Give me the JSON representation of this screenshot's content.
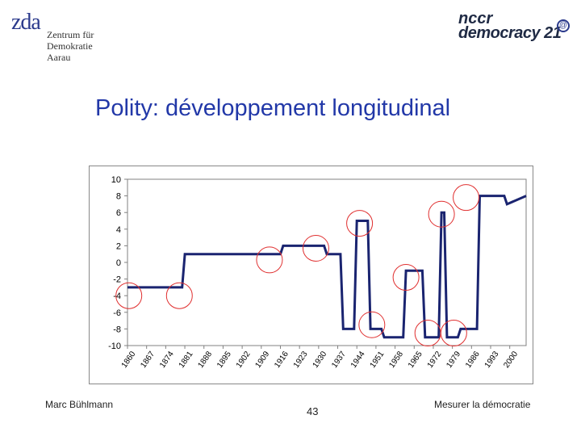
{
  "logos": {
    "left": {
      "mark": "zda",
      "lines": [
        "Zentrum für",
        "Demokratie",
        "Aarau"
      ]
    },
    "right": {
      "line1": "nccr",
      "line2": "democracy 21",
      "badge": "@"
    }
  },
  "slide": {
    "title": "Polity: développement longitudinal",
    "footer_left": "Marc Bühlmann",
    "page_number": "43",
    "footer_right": "Mesurer la démocratie"
  },
  "colors": {
    "title": "#2238a8",
    "line": "#1a2470",
    "circle": "#e03030",
    "plot_bg": "#ffffff"
  },
  "chart_data": {
    "type": "line",
    "title": "",
    "xlabel": "",
    "ylabel": "",
    "xlim": [
      1860,
      2006
    ],
    "ylim": [
      -10,
      10
    ],
    "yticks": [
      10,
      8,
      6,
      4,
      2,
      0,
      -2,
      -4,
      -6,
      -8,
      -10
    ],
    "xticks": [
      "1860",
      "1867",
      "1874",
      "1881",
      "1888",
      "1895",
      "1902",
      "1909",
      "1916",
      "1923",
      "1930",
      "1937",
      "1944",
      "1951",
      "1958",
      "1965",
      "1972",
      "1979",
      "1986",
      "1993",
      "2000"
    ],
    "grid": false,
    "series": [
      {
        "x": [
          1860,
          1880,
          1881,
          1916,
          1917,
          1932,
          1933,
          1938,
          1939,
          1943,
          1944,
          1948,
          1949,
          1953,
          1954,
          1961,
          1962,
          1968,
          1969,
          1974,
          1975,
          1976,
          1977,
          1981,
          1982,
          1988,
          1989,
          1998,
          1999,
          2006
        ],
        "y": [
          -3,
          -3,
          1,
          1,
          2,
          2,
          1,
          1,
          -8,
          -8,
          5,
          5,
          -8,
          -8,
          -9,
          -9,
          -1,
          -1,
          -9,
          -9,
          6,
          6,
          -9,
          -9,
          -8,
          -8,
          8,
          8,
          7,
          8
        ]
      }
    ],
    "highlight_circles": [
      {
        "x": 1860.5,
        "y": -4
      },
      {
        "x": 1879,
        "y": -4
      },
      {
        "x": 1912,
        "y": 0.3
      },
      {
        "x": 1929,
        "y": 1.7
      },
      {
        "x": 1945,
        "y": 4.7
      },
      {
        "x": 1949.5,
        "y": -7.5
      },
      {
        "x": 1962,
        "y": -1.8
      },
      {
        "x": 1970,
        "y": -8.5
      },
      {
        "x": 1975,
        "y": 5.8
      },
      {
        "x": 1979.5,
        "y": -8.5
      },
      {
        "x": 1984,
        "y": 7.8
      }
    ]
  }
}
